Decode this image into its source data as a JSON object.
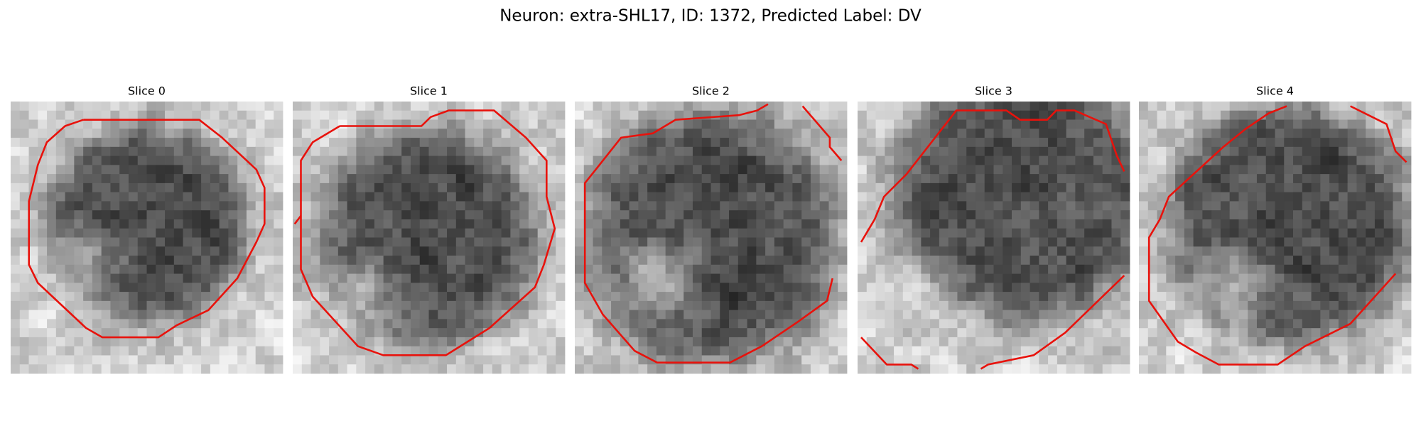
{
  "title": "Neuron: extra-SHL17, ID: 1372, Predicted Label: DV",
  "slices": [
    "Slice 0",
    "Slice 1",
    "Slice 2",
    "Slice 3",
    "Slice 4"
  ]
}
